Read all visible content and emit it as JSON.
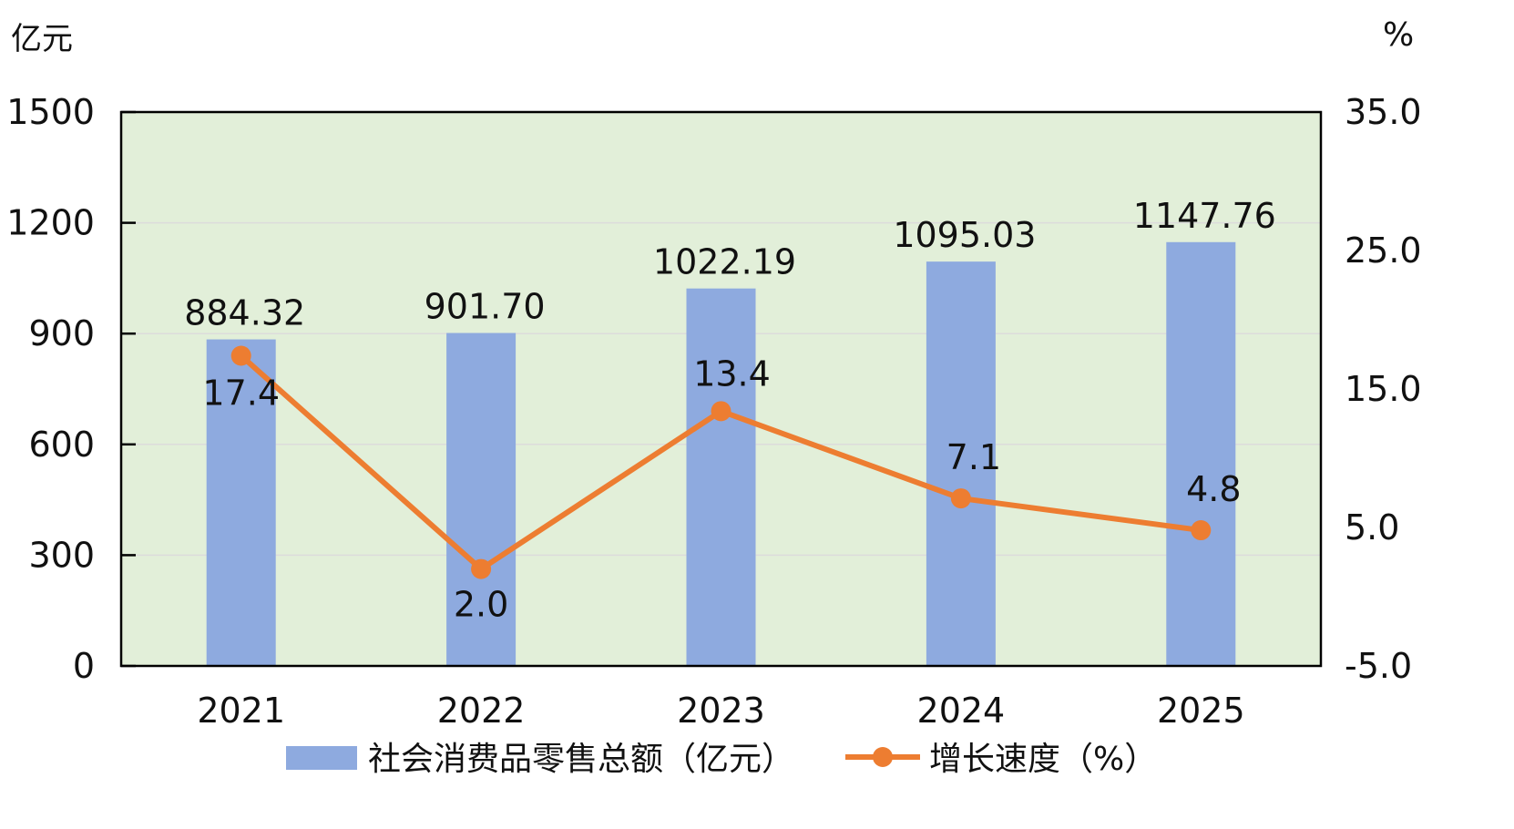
{
  "chart_data": {
    "type": "bar",
    "categories": [
      "2021",
      "2022",
      "2023",
      "2024",
      "2025"
    ],
    "series": [
      {
        "name": "社会消费品零售总额（亿元）",
        "type": "bar",
        "axis": "left",
        "values": [
          884.32,
          901.7,
          1022.19,
          1095.03,
          1147.76
        ],
        "labels": [
          "884.32",
          "901.70",
          "1022.19",
          "1095.03",
          "1147.76"
        ]
      },
      {
        "name": "增长速度（%）",
        "type": "line",
        "axis": "right",
        "values": [
          17.4,
          2.0,
          13.4,
          7.1,
          4.8
        ],
        "labels": [
          "17.4",
          "2.0",
          "13.4",
          "7.1",
          "4.8"
        ]
      }
    ],
    "y_left": {
      "unit": "亿元",
      "ylim": [
        0,
        1500
      ],
      "ticks": [
        "0",
        "300",
        "600",
        "900",
        "1200",
        "1500"
      ]
    },
    "y_right": {
      "unit": "%",
      "ylim": [
        -5,
        35
      ],
      "ticks": [
        "-5.0",
        "5.0",
        "15.0",
        "25.0",
        "35.0"
      ]
    },
    "grid": true,
    "legend": "bottom",
    "colors": {
      "bar": "#8eaadf",
      "line": "#ed7d31",
      "plot_bg": "#e2efd9",
      "grid": "#dcdcdc"
    }
  }
}
